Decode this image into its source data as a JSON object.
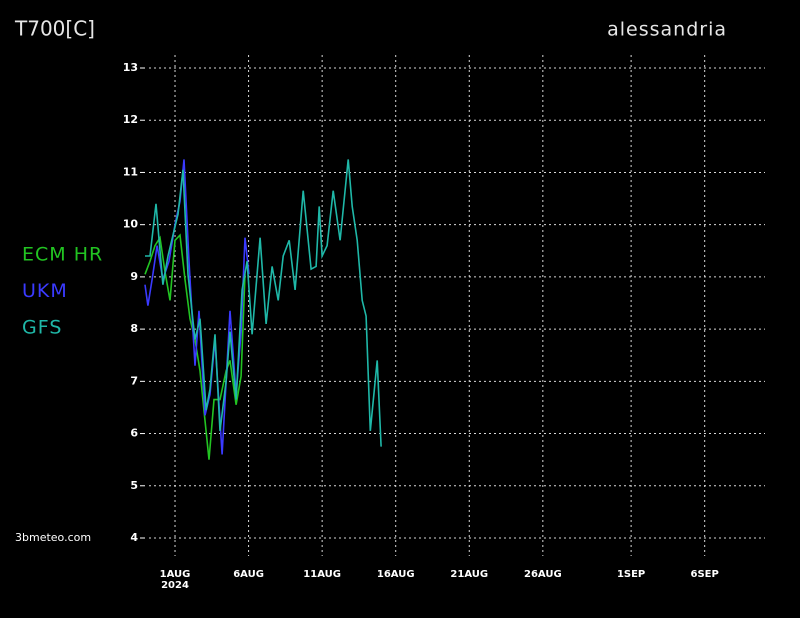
{
  "chart_data": {
    "type": "line",
    "title": "T700[C]",
    "subtitle": "alessandria",
    "source": "3bmeteo.com",
    "x_sub_label": "2024",
    "xlim": [
      -2.04,
      40.1
    ],
    "xticks": [
      {
        "value": 0,
        "label": "1AUG"
      },
      {
        "value": 5,
        "label": "6AUG"
      },
      {
        "value": 10,
        "label": "11AUG"
      },
      {
        "value": 15,
        "label": "16AUG"
      },
      {
        "value": 20,
        "label": "21AUG"
      },
      {
        "value": 25,
        "label": "26AUG"
      },
      {
        "value": 31,
        "label": "1SEP"
      },
      {
        "value": 36,
        "label": "6SEP"
      }
    ],
    "ylim": [
      4,
      13
    ],
    "yticks": [
      4,
      5,
      6,
      7,
      8,
      9,
      10,
      11,
      12,
      13
    ],
    "grid": true,
    "series": [
      {
        "name": "ECM HR",
        "color": "#22c422",
        "x": [
          -2.04,
          -1.7,
          -1.36,
          -1.02,
          -0.68,
          -0.34,
          0,
          0.34,
          0.68,
          1.02,
          1.36,
          1.7,
          2.04,
          2.31,
          2.65,
          3.06,
          3.47,
          3.74,
          4.15,
          4.49,
          4.76
        ],
        "values": [
          9.05,
          9.3,
          9.6,
          9.75,
          9.1,
          8.55,
          9.7,
          9.8,
          8.95,
          8.2,
          7.8,
          7.2,
          6.25,
          5.5,
          6.65,
          6.65,
          7.2,
          7.4,
          6.55,
          7.1,
          9.05
        ]
      },
      {
        "name": "UKM",
        "color": "#3a3aff",
        "x": [
          -2.04,
          -1.84,
          -1.56,
          -1.22,
          -0.82,
          -0.41,
          0,
          0.34,
          0.61,
          0.95,
          1.36,
          1.63,
          2.04,
          2.38,
          2.72,
          3.2,
          3.74,
          4.15,
          4.49,
          4.76,
          5.03
        ],
        "values": [
          8.85,
          8.45,
          8.95,
          9.6,
          8.95,
          9.3,
          10.0,
          10.45,
          11.25,
          9.3,
          7.3,
          8.35,
          6.35,
          6.75,
          7.8,
          5.6,
          8.35,
          6.75,
          7.95,
          9.75,
          9.05
        ]
      },
      {
        "name": "GFS",
        "color": "#1fb8a8",
        "x": [
          -2.04,
          -1.7,
          -1.29,
          -0.82,
          -0.48,
          -0.14,
          0.2,
          0.54,
          0.88,
          1.36,
          1.7,
          2.11,
          2.38,
          2.72,
          3.06,
          3.47,
          3.74,
          4.15,
          4.56,
          4.9,
          5.24,
          5.78,
          6.19,
          6.6,
          7.01,
          7.35,
          7.76,
          8.16,
          8.71,
          9.25,
          9.59,
          9.8,
          10.0,
          10.34,
          10.75,
          11.22,
          11.77,
          12.04,
          12.38,
          12.72,
          12.99,
          13.27,
          13.74,
          14.01
        ],
        "values": [
          9.4,
          9.4,
          10.4,
          8.85,
          9.4,
          9.8,
          10.2,
          11.05,
          9.05,
          7.8,
          8.2,
          6.45,
          6.85,
          7.9,
          6.05,
          7.0,
          7.95,
          6.65,
          8.75,
          9.3,
          7.9,
          9.75,
          8.1,
          9.2,
          8.55,
          9.4,
          9.7,
          8.75,
          10.65,
          9.15,
          9.2,
          10.35,
          9.4,
          9.6,
          10.65,
          9.7,
          11.25,
          10.35,
          9.7,
          8.55,
          8.25,
          6.05,
          7.4,
          5.75
        ]
      }
    ]
  }
}
